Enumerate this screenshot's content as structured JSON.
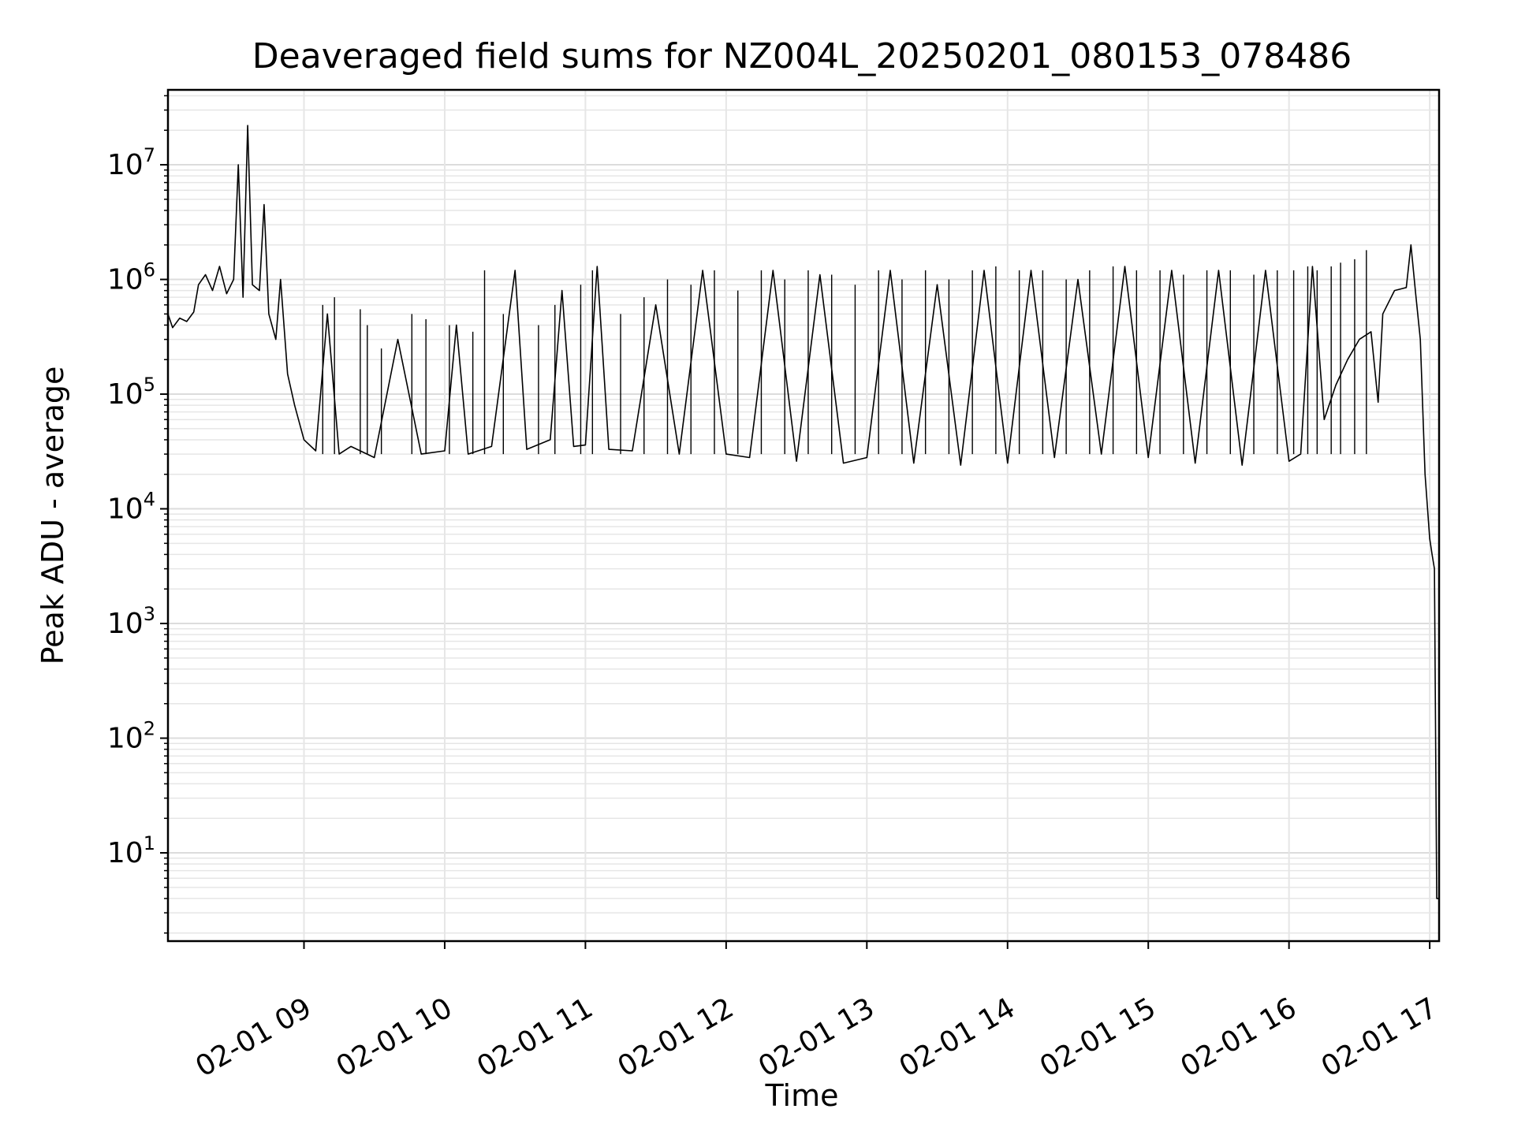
{
  "chart_data": {
    "type": "line",
    "title": "Deaveraged field sums for NZ004L_20250201_080153_078486",
    "xlabel": "Time",
    "ylabel": "Peak ADU - average",
    "x_scale": "time",
    "y_scale": "log",
    "xlim": [
      "02-01 08:02",
      "02-01 17:04"
    ],
    "ylim": [
      1.7,
      45000000
    ],
    "grid": true,
    "line_color": "#000000",
    "x_ticks": [
      {
        "value": "02-01 09:00",
        "label": "02-01 09"
      },
      {
        "value": "02-01 10:00",
        "label": "02-01 10"
      },
      {
        "value": "02-01 11:00",
        "label": "02-01 11"
      },
      {
        "value": "02-01 12:00",
        "label": "02-01 12"
      },
      {
        "value": "02-01 13:00",
        "label": "02-01 13"
      },
      {
        "value": "02-01 14:00",
        "label": "02-01 14"
      },
      {
        "value": "02-01 15:00",
        "label": "02-01 15"
      },
      {
        "value": "02-01 16:00",
        "label": "02-01 16"
      },
      {
        "value": "02-01 17:00",
        "label": "02-01 17"
      }
    ],
    "y_ticks": [
      {
        "value": 10,
        "base": "10",
        "exp": "1"
      },
      {
        "value": 100,
        "base": "10",
        "exp": "2"
      },
      {
        "value": 1000,
        "base": "10",
        "exp": "3"
      },
      {
        "value": 10000,
        "base": "10",
        "exp": "4"
      },
      {
        "value": 100000,
        "base": "10",
        "exp": "5"
      },
      {
        "value": 1000000,
        "base": "10",
        "exp": "6"
      },
      {
        "value": 10000000,
        "base": "10",
        "exp": "7"
      }
    ],
    "series": [
      {
        "points": [
          [
            "02-01 08:02",
            500000
          ],
          [
            "02-01 08:04",
            380000
          ],
          [
            "02-01 08:07",
            460000
          ],
          [
            "02-01 08:10",
            430000
          ],
          [
            "02-01 08:13",
            520000
          ],
          [
            "02-01 08:15",
            900000
          ],
          [
            "02-01 08:18",
            1100000
          ],
          [
            "02-01 08:21",
            800000
          ],
          [
            "02-01 08:24",
            1300000
          ],
          [
            "02-01 08:27",
            750000
          ],
          [
            "02-01 08:30",
            1000000
          ],
          [
            "02-01 08:32",
            10000000
          ],
          [
            "02-01 08:34",
            700000
          ],
          [
            "02-01 08:36",
            22000000
          ],
          [
            "02-01 08:38",
            900000
          ],
          [
            "02-01 08:41",
            800000
          ],
          [
            "02-01 08:43",
            4500000
          ],
          [
            "02-01 08:45",
            500000
          ],
          [
            "02-01 08:48",
            300000
          ],
          [
            "02-01 08:50",
            1000000
          ],
          [
            "02-01 08:53",
            150000
          ],
          [
            "02-01 08:56",
            80000
          ],
          [
            "02-01 09:00",
            40000
          ],
          [
            "02-01 09:05",
            32000
          ],
          [
            "02-01 09:10",
            500000
          ],
          [
            "02-01 09:15",
            30000
          ],
          [
            "02-01 09:20",
            35000
          ],
          [
            "02-01 09:30",
            28000
          ],
          [
            "02-01 09:40",
            300000
          ],
          [
            "02-01 09:50",
            30000
          ],
          [
            "02-01 10:00",
            32000
          ],
          [
            "02-01 10:05",
            400000
          ],
          [
            "02-01 10:10",
            30000
          ],
          [
            "02-01 10:20",
            35000
          ],
          [
            "02-01 10:30",
            1200000
          ],
          [
            "02-01 10:35",
            33000
          ],
          [
            "02-01 10:45",
            40000
          ],
          [
            "02-01 10:50",
            800000
          ],
          [
            "02-01 10:55",
            35000
          ],
          [
            "02-01 11:00",
            36000
          ],
          [
            "02-01 11:05",
            1300000
          ],
          [
            "02-01 11:10",
            33000
          ],
          [
            "02-01 11:20",
            32000
          ],
          [
            "02-01 11:30",
            600000
          ],
          [
            "02-01 11:40",
            30000
          ],
          [
            "02-01 11:50",
            1200000
          ],
          [
            "02-01 12:00",
            30000
          ],
          [
            "02-01 12:10",
            28000
          ],
          [
            "02-01 12:20",
            1200000
          ],
          [
            "02-01 12:30",
            26000
          ],
          [
            "02-01 12:40",
            1100000
          ],
          [
            "02-01 12:50",
            25000
          ],
          [
            "02-01 13:00",
            28000
          ],
          [
            "02-01 13:10",
            1200000
          ],
          [
            "02-01 13:20",
            25000
          ],
          [
            "02-01 13:30",
            900000
          ],
          [
            "02-01 13:40",
            24000
          ],
          [
            "02-01 13:50",
            1200000
          ],
          [
            "02-01 14:00",
            25000
          ],
          [
            "02-01 14:10",
            1200000
          ],
          [
            "02-01 14:20",
            28000
          ],
          [
            "02-01 14:30",
            1000000
          ],
          [
            "02-01 14:40",
            30000
          ],
          [
            "02-01 14:50",
            1300000
          ],
          [
            "02-01 15:00",
            28000
          ],
          [
            "02-01 15:10",
            1200000
          ],
          [
            "02-01 15:20",
            25000
          ],
          [
            "02-01 15:30",
            1200000
          ],
          [
            "02-01 15:40",
            24000
          ],
          [
            "02-01 15:50",
            1200000
          ],
          [
            "02-01 16:00",
            26000
          ],
          [
            "02-01 16:05",
            30000
          ],
          [
            "02-01 16:10",
            1300000
          ],
          [
            "02-01 16:15",
            60000
          ],
          [
            "02-01 16:20",
            120000
          ],
          [
            "02-01 16:25",
            200000
          ],
          [
            "02-01 16:30",
            300000
          ],
          [
            "02-01 16:35",
            350000
          ],
          [
            "02-01 16:38",
            85000
          ],
          [
            "02-01 16:40",
            500000
          ],
          [
            "02-01 16:45",
            800000
          ],
          [
            "02-01 16:50",
            850000
          ],
          [
            "02-01 16:52",
            2000000
          ],
          [
            "02-01 16:54",
            750000
          ],
          [
            "02-01 16:56",
            300000
          ],
          [
            "02-01 16:58",
            20000
          ],
          [
            "02-01 17:00",
            5500
          ],
          [
            "02-01 17:01",
            4000
          ],
          [
            "02-01 17:02",
            3000
          ],
          [
            "02-01 17:03",
            4
          ],
          [
            "02-01 17:04",
            4
          ]
        ],
        "spikes": [
          [
            "02-01 09:08",
            600000
          ],
          [
            "02-01 09:13",
            700000
          ],
          [
            "02-01 09:24",
            550000
          ],
          [
            "02-01 09:27",
            400000
          ],
          [
            "02-01 09:33",
            250000
          ],
          [
            "02-01 09:46",
            500000
          ],
          [
            "02-01 09:52",
            450000
          ],
          [
            "02-01 10:02",
            400000
          ],
          [
            "02-01 10:12",
            350000
          ],
          [
            "02-01 10:17",
            1200000
          ],
          [
            "02-01 10:25",
            500000
          ],
          [
            "02-01 10:40",
            400000
          ],
          [
            "02-01 10:47",
            600000
          ],
          [
            "02-01 10:58",
            900000
          ],
          [
            "02-01 11:03",
            1200000
          ],
          [
            "02-01 11:15",
            500000
          ],
          [
            "02-01 11:25",
            700000
          ],
          [
            "02-01 11:35",
            1000000
          ],
          [
            "02-01 11:45",
            900000
          ],
          [
            "02-01 11:55",
            1200000
          ],
          [
            "02-01 12:05",
            800000
          ],
          [
            "02-01 12:15",
            1200000
          ],
          [
            "02-01 12:25",
            1000000
          ],
          [
            "02-01 12:35",
            1200000
          ],
          [
            "02-01 12:45",
            1100000
          ],
          [
            "02-01 12:55",
            900000
          ],
          [
            "02-01 13:05",
            1200000
          ],
          [
            "02-01 13:15",
            1000000
          ],
          [
            "02-01 13:25",
            1200000
          ],
          [
            "02-01 13:35",
            1000000
          ],
          [
            "02-01 13:45",
            1200000
          ],
          [
            "02-01 13:55",
            1300000
          ],
          [
            "02-01 14:05",
            1200000
          ],
          [
            "02-01 14:15",
            1200000
          ],
          [
            "02-01 14:25",
            1000000
          ],
          [
            "02-01 14:35",
            1200000
          ],
          [
            "02-01 14:45",
            1300000
          ],
          [
            "02-01 14:55",
            1200000
          ],
          [
            "02-01 15:05",
            1200000
          ],
          [
            "02-01 15:15",
            1100000
          ],
          [
            "02-01 15:25",
            1200000
          ],
          [
            "02-01 15:35",
            1200000
          ],
          [
            "02-01 15:45",
            1100000
          ],
          [
            "02-01 15:55",
            1200000
          ],
          [
            "02-01 16:02",
            1200000
          ],
          [
            "02-01 16:08",
            1300000
          ],
          [
            "02-01 16:12",
            1200000
          ],
          [
            "02-01 16:18",
            1300000
          ],
          [
            "02-01 16:22",
            1400000
          ],
          [
            "02-01 16:28",
            1500000
          ],
          [
            "02-01 16:33",
            1800000
          ]
        ]
      }
    ]
  }
}
